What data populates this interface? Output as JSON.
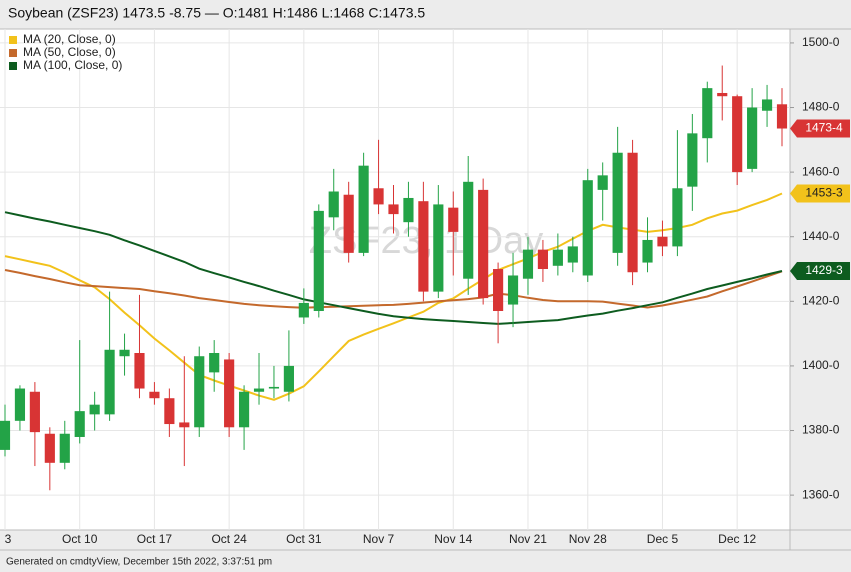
{
  "chart_data": {
    "type": "candlestick",
    "title": "Soybean (ZSF23) 1473.5 -8.75 — O:1481 H:1486 L:1468 C:1473.5",
    "watermark": "ZSF23, 1 Day",
    "footer": "Generated on cmdtyView, December 15th 2022, 3:37:51 pm",
    "categories": [
      "3",
      null,
      null,
      null,
      null,
      "Oct 10",
      null,
      null,
      null,
      null,
      "Oct 17",
      null,
      null,
      null,
      null,
      "Oct 24",
      null,
      null,
      null,
      null,
      "Oct 31",
      null,
      null,
      null,
      null,
      "Nov 7",
      null,
      null,
      null,
      null,
      "Nov 14",
      null,
      null,
      null,
      null,
      "Nov 21",
      null,
      null,
      null,
      "Nov 28",
      null,
      null,
      null,
      null,
      "Dec 5",
      null,
      null,
      null,
      null,
      "Dec 12",
      null,
      null,
      null
    ],
    "candles": {
      "up_color": "#23a347",
      "down_color": "#d83434",
      "last_label": "1473-4",
      "open": [
        1374,
        1383,
        1392,
        1379,
        1370,
        1378,
        1385,
        1385,
        1403,
        1404,
        1392,
        1390,
        1382.5,
        1381,
        1398,
        1402,
        1381,
        1392,
        1393,
        1392,
        1415,
        1417,
        1446,
        1453,
        1435,
        1455,
        1450,
        1444.5,
        1451,
        1423,
        1449,
        1427,
        1454.5,
        1430,
        1419,
        1427,
        1436,
        1431,
        1432,
        1428,
        1454.5,
        1435,
        1466,
        1432,
        1440,
        1437,
        1455.5,
        1470.5,
        1484.5,
        1483.5,
        1461,
        1479,
        1481
      ],
      "high": [
        1388,
        1394,
        1395,
        1381,
        1383,
        1408,
        1392,
        1423,
        1410,
        1422,
        1395,
        1393,
        1403,
        1406,
        1408,
        1404,
        1394,
        1404,
        1400,
        1411,
        1424,
        1450,
        1461,
        1457,
        1466,
        1470,
        1456,
        1457,
        1457,
        1456,
        1454,
        1465,
        1458,
        1432,
        1435,
        1440,
        1439,
        1441,
        1440,
        1461,
        1463,
        1474,
        1470,
        1446,
        1445,
        1473,
        1478,
        1488,
        1493,
        1484,
        1486,
        1487,
        1486
      ],
      "low": [
        1372,
        1380,
        1369,
        1361.5,
        1368,
        1376,
        1380,
        1383,
        1397,
        1390,
        1388,
        1378,
        1369,
        1378,
        1392,
        1378,
        1374,
        1388,
        1390,
        1389,
        1413,
        1415,
        1442,
        1432,
        1434,
        1447,
        1441,
        1440,
        1420,
        1421,
        1428,
        1422,
        1419,
        1407,
        1412,
        1422,
        1426,
        1428,
        1429,
        1426,
        1445,
        1431,
        1425,
        1429,
        1434,
        1434,
        1448,
        1463,
        1476,
        1456,
        1460,
        1474,
        1468
      ],
      "close": [
        1383,
        1393,
        1379.5,
        1370,
        1379,
        1386,
        1388,
        1405,
        1405,
        1393,
        1390,
        1382,
        1381,
        1403,
        1404,
        1381,
        1392,
        1393,
        1393.5,
        1400,
        1419.5,
        1448,
        1454,
        1435,
        1462,
        1450,
        1447,
        1452,
        1423,
        1450,
        1441.5,
        1457,
        1421,
        1417,
        1428,
        1436,
        1430,
        1436,
        1437,
        1457.5,
        1459,
        1466,
        1429,
        1439,
        1437,
        1455,
        1472,
        1486,
        1483.5,
        1460,
        1480,
        1482.5,
        1473.5
      ]
    },
    "series": [
      {
        "name": "MA (20, Close, 0)",
        "color": "#f2c21b",
        "last_label": "1453-3",
        "values": [
          1434,
          1433,
          1432,
          1431,
          1428.9,
          1426.5,
          1424.3,
          1420.7,
          1416.5,
          1412.6,
          1408.5,
          1404.8,
          1401.0,
          1397.2,
          1395.5,
          1393.9,
          1392.4,
          1390.8,
          1389.5,
          1391.4,
          1393.7,
          1398.3,
          1403.0,
          1407.7,
          1409.7,
          1411.5,
          1413.2,
          1415.0,
          1416.8,
          1419.5,
          1420.9,
          1423.9,
          1426.8,
          1429.7,
          1431.5,
          1433.3,
          1435.3,
          1436.9,
          1439.4,
          1441.8,
          1443.7,
          1442.9,
          1442.2,
          1441.5,
          1442.0,
          1442.7,
          1443.7,
          1445.7,
          1447.2,
          1448.1,
          1449.8,
          1451.4,
          1453.375
        ]
      },
      {
        "name": "MA (50, Close, 0)",
        "color": "#c4692c",
        "values": [
          1429.7,
          1428.8,
          1427.8,
          1426.9,
          1425.9,
          1425.0,
          1424.7,
          1424.4,
          1424.1,
          1423.8,
          1423.1,
          1422.5,
          1421.8,
          1421.0,
          1420.4,
          1419.8,
          1419.2,
          1418.8,
          1418.5,
          1418.2,
          1418.0,
          1418.2,
          1418.3,
          1418.5,
          1418.6,
          1418.8,
          1418.9,
          1419.2,
          1419.6,
          1420.0,
          1420.3,
          1420.7,
          1421.2,
          1422.4,
          1421.9,
          1421.1,
          1420.4,
          1420.0,
          1420.0,
          1420.0,
          1419.9,
          1419.3,
          1418.7,
          1418.1,
          1418.7,
          1419.6,
          1420.5,
          1421.5,
          1423.1,
          1424.6,
          1426.1,
          1427.7,
          1429.3
        ]
      },
      {
        "name": "MA (100, Close, 0)",
        "color": "#0d5c1f",
        "last_label": "1429-3",
        "values": [
          1447.6,
          1446.6,
          1445.6,
          1444.7,
          1443.7,
          1442.7,
          1441.7,
          1440.6,
          1438.9,
          1437.3,
          1435.6,
          1433.9,
          1432.2,
          1430.1,
          1428.7,
          1427.4,
          1426.0,
          1424.7,
          1423.3,
          1422.0,
          1420.6,
          1419.7,
          1418.8,
          1417.9,
          1417.0,
          1416.1,
          1415.4,
          1414.9,
          1414.5,
          1414.2,
          1413.9,
          1413.6,
          1413.3,
          1413.0,
          1413.3,
          1413.6,
          1413.9,
          1414.2,
          1414.9,
          1415.6,
          1416.2,
          1417.1,
          1417.9,
          1418.8,
          1419.7,
          1421.1,
          1422.4,
          1423.8,
          1424.9,
          1426.0,
          1427.1,
          1428.3,
          1429.375
        ]
      }
    ],
    "ylim": [
      1349.2,
      1504
    ],
    "yticks": [
      {
        "value": 1360,
        "label": "1360-0"
      },
      {
        "value": 1380,
        "label": "1380-0"
      },
      {
        "value": 1400,
        "label": "1400-0"
      },
      {
        "value": 1420,
        "label": "1420-0"
      },
      {
        "value": 1440,
        "label": "1440-0"
      },
      {
        "value": 1460,
        "label": "1460-0"
      },
      {
        "value": 1480,
        "label": "1480-0"
      },
      {
        "value": 1500,
        "label": "1500-0"
      }
    ],
    "grid": true,
    "legend": "top-left"
  }
}
